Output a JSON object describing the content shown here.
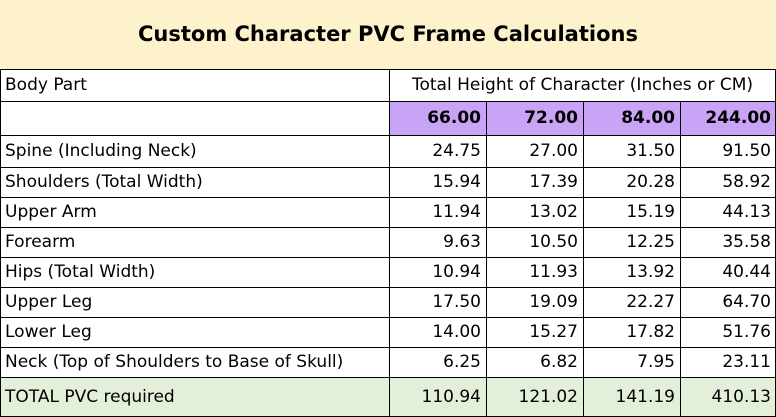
{
  "title": "Custom Character PVC Frame Calculations",
  "header": {
    "col1": "Body Part",
    "col2": "Total Height of Character (Inches or CM)"
  },
  "heights": [
    "66.00",
    "72.00",
    "84.00",
    "244.00"
  ],
  "rows": [
    {
      "label": "Spine (Including Neck)",
      "values": [
        "24.75",
        "27.00",
        "31.50",
        "91.50"
      ]
    },
    {
      "label": "Shoulders (Total Width)",
      "values": [
        "15.94",
        "17.39",
        "20.28",
        "58.92"
      ]
    },
    {
      "label": "Upper Arm",
      "values": [
        "11.94",
        "13.02",
        "15.19",
        "44.13"
      ]
    },
    {
      "label": "Forearm",
      "values": [
        "9.63",
        "10.50",
        "12.25",
        "35.58"
      ]
    },
    {
      "label": "Hips (Total Width)",
      "values": [
        "10.94",
        "11.93",
        "13.92",
        "40.44"
      ]
    },
    {
      "label": "Upper Leg",
      "values": [
        "17.50",
        "19.09",
        "22.27",
        "64.70"
      ]
    },
    {
      "label": "Lower Leg",
      "values": [
        "14.00",
        "15.27",
        "17.82",
        "51.76"
      ]
    },
    {
      "label": "Neck (Top of Shoulders to Base of Skull)",
      "values": [
        "6.25",
        "6.82",
        "7.95",
        "23.11"
      ]
    }
  ],
  "total": {
    "label": "TOTAL PVC required",
    "values": [
      "110.94",
      "121.02",
      "141.19",
      "410.13"
    ]
  },
  "colors": {
    "title_bg": "#fdf2cc",
    "height_bg": "#c9a3f5",
    "total_bg": "#e3efd8"
  }
}
